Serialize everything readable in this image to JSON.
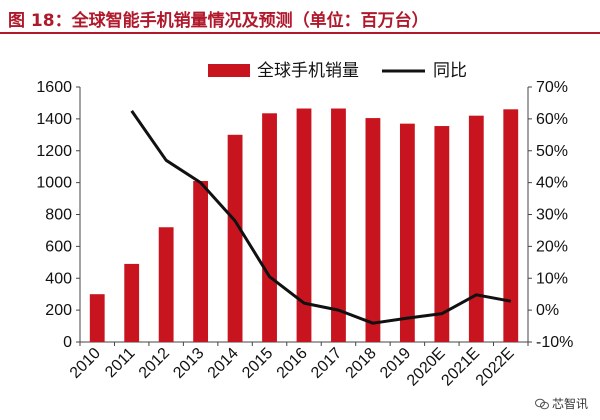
{
  "title": "图 18：全球智能手机销量情况及预测（单位：百万台）",
  "watermark": "芯智讯",
  "colors": {
    "bar": "#c8141e",
    "line": "#111111",
    "title": "#b0182b"
  },
  "chart_data": {
    "type": "bar",
    "categories": [
      "2010",
      "2011",
      "2012",
      "2013",
      "2014",
      "2015",
      "2016",
      "2017",
      "2018",
      "2019",
      "2020E",
      "2021E",
      "2022E"
    ],
    "series": [
      {
        "name": "全球手机销量",
        "type": "bar",
        "axis": "left",
        "values": [
          300,
          490,
          720,
          1010,
          1300,
          1435,
          1465,
          1465,
          1405,
          1370,
          1355,
          1420,
          1460
        ]
      },
      {
        "name": "同比",
        "type": "line",
        "axis": "right",
        "unit": "%",
        "values": [
          null,
          62.5,
          47,
          40,
          28,
          10.5,
          2.2,
          0,
          -4.1,
          -2.5,
          -1.1,
          4.8,
          2.8
        ]
      }
    ],
    "y_left": {
      "min": 0,
      "max": 1600,
      "step": 200,
      "ticks": [
        "0",
        "200",
        "400",
        "600",
        "800",
        "1000",
        "1200",
        "1400",
        "1600"
      ]
    },
    "y_right": {
      "min": -10,
      "max": 70,
      "step": 10,
      "ticks": [
        "-10%",
        "0%",
        "10%",
        "20%",
        "30%",
        "40%",
        "50%",
        "60%",
        "70%"
      ]
    },
    "legend_position": "top-center",
    "grid": false
  }
}
